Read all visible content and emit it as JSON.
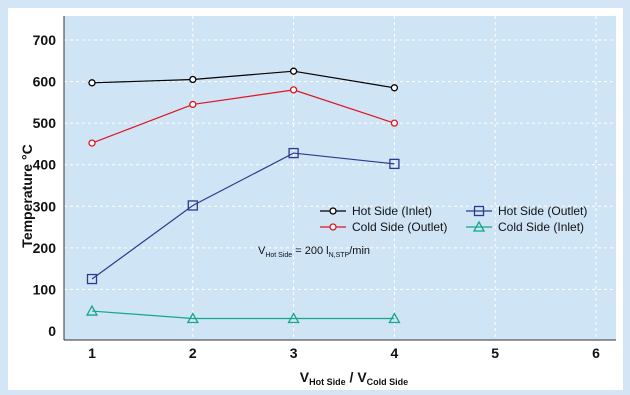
{
  "chart_data": {
    "type": "line",
    "xlabel_main": "V",
    "xlabel_sub1": "Hot Side",
    "xlabel_sep": " / ",
    "xlabel_main2": "V",
    "xlabel_sub2": "Cold Side",
    "ylabel": "Temperature °C",
    "xlim": [
      1,
      6
    ],
    "ylim": [
      0,
      700
    ],
    "x_ticks": [
      1,
      2,
      3,
      4,
      5,
      6
    ],
    "y_ticks": [
      0,
      100,
      200,
      300,
      400,
      500,
      600,
      700
    ],
    "grid": true,
    "legend_position": "center-right",
    "series": [
      {
        "name": "Hot Side (Inlet)",
        "marker": "circle",
        "color": "#000000",
        "x": [
          1,
          2,
          3,
          4
        ],
        "y": [
          597,
          605,
          625,
          585
        ]
      },
      {
        "name": "Cold Side (Outlet)",
        "marker": "circle",
        "color": "#e0141e",
        "x": [
          1,
          2,
          3,
          4
        ],
        "y": [
          452,
          545,
          580,
          500
        ]
      },
      {
        "name": "Hot Side (Outlet)",
        "marker": "square",
        "color": "#2b3a8e",
        "x": [
          1,
          2,
          3,
          4
        ],
        "y": [
          125,
          302,
          428,
          402
        ]
      },
      {
        "name": "Cold Side (Inlet)",
        "marker": "triangle",
        "color": "#13a88a",
        "x": [
          1,
          2,
          3,
          4
        ],
        "y": [
          48,
          30,
          30,
          30
        ]
      }
    ],
    "annotation": {
      "main1": "V",
      "sub1": "Hot Side",
      "text1": " = 200 l",
      "sub2": "N,STP",
      "text2": "/min"
    }
  },
  "colors": {
    "plot_background": "#cfe4f5",
    "page_background": "#d4e6f5",
    "grid": "#ffffff"
  }
}
